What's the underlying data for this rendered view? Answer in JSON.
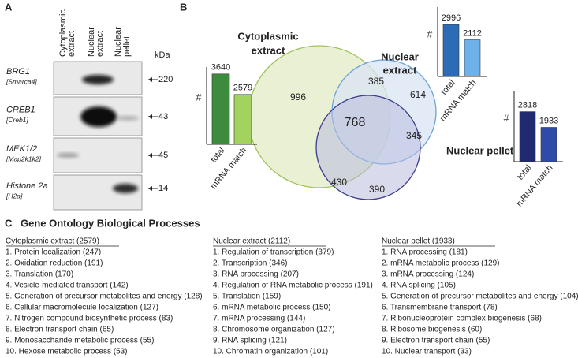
{
  "panels": {
    "a": "A",
    "b": "B",
    "c": "C"
  },
  "blot": {
    "columns": [
      [
        "Cytoplasmic",
        "extract"
      ],
      [
        "Nuclear",
        "extract"
      ],
      [
        "Nuclear",
        "pellet"
      ]
    ],
    "unit": "kDa",
    "rows": [
      {
        "protein": "BRG1",
        "gene": "[Smarca4]",
        "marker": "220"
      },
      {
        "protein": "CREB1",
        "gene": "[Creb1]",
        "marker": "43"
      },
      {
        "protein": "MEK1/2",
        "gene": "[Map2k1k2]",
        "marker": "45"
      },
      {
        "protein": "Histone 2a",
        "gene": "[H2a]",
        "marker": "14"
      }
    ]
  },
  "venn": {
    "labels": {
      "cytoplasmic": [
        "Cytoplasmic",
        "extract"
      ],
      "nuclear_extract": [
        "Nuclear",
        "extract"
      ],
      "nuclear_pellet": [
        "Nuclear pellet"
      ]
    },
    "regions": {
      "cyto_only": 996,
      "cyto_ne": 385,
      "ne_only": 614,
      "all": 768,
      "ne_np": 345,
      "cyto_np": 430,
      "np_only": 390
    }
  },
  "chart_data": [
    {
      "type": "bar",
      "y_label": "#",
      "categories": [
        "total",
        "mRNA match"
      ],
      "values": [
        3640,
        2579
      ],
      "colors": [
        "#3d8b3d",
        "#a3d25e"
      ],
      "ylim": [
        0,
        4000
      ]
    },
    {
      "type": "bar",
      "y_label": "#",
      "categories": [
        "total",
        "mRNA match"
      ],
      "values": [
        2996,
        2112
      ],
      "colors": [
        "#2c6bb5",
        "#6db1ea"
      ],
      "ylim": [
        0,
        4000
      ]
    },
    {
      "type": "bar",
      "y_label": "#",
      "categories": [
        "total",
        "mRNA match"
      ],
      "values": [
        2818,
        1933
      ],
      "colors": [
        "#202a6e",
        "#2f4ba8"
      ],
      "ylim": [
        0,
        4000
      ]
    }
  ],
  "go": {
    "title": "Gene Ontology Biological Processes",
    "columns": [
      {
        "header": "Cytoplasmic extract (2579)",
        "items": [
          "1. Protein localization (247)",
          "2. Oxidation reduction (191)",
          "3. Translation (170)",
          "4. Vesicle-mediated transport (142)",
          "5. Generation of precursor metabolites and energy (128)",
          "6. Cellular macromolecule localization (127)",
          "7. Nitrogen compound biosynthetic process (83)",
          "8. Electron transport chain (65)",
          "9. Monosaccharide metabolic process (55)",
          "10. Hexose metabolic process (53)"
        ]
      },
      {
        "header": "Nuclear extract (2112)",
        "items": [
          "1. Regulation of transcription (379)",
          "2. Transcription (346)",
          "3. RNA processing (207)",
          "4. Regulation of RNA metabolic process (191)",
          "5. Translation (159)",
          "6. mRNA metabolic process (150)",
          "7. mRNA processing (144)",
          "8. Chromosome organization (127)",
          "9. RNA splicing (121)",
          "10. Chromatin organization (101)"
        ]
      },
      {
        "header": "Nuclear pellet (1933)",
        "items": [
          "1. RNA processing (181)",
          "2. mRNA metabolic process (129)",
          "3. mRNA processing (124)",
          "4. RNA splicing (105)",
          "5. Generation of precursor metabolites and energy (104)",
          "6. Transmembrane transport (78)",
          "7. Ribonucleoprotein complex biogenesis (68)",
          "8. Ribosome biogenesis (60)",
          "9. Electron transport chain (55)",
          "10. Nuclear transport (33)"
        ]
      }
    ]
  }
}
